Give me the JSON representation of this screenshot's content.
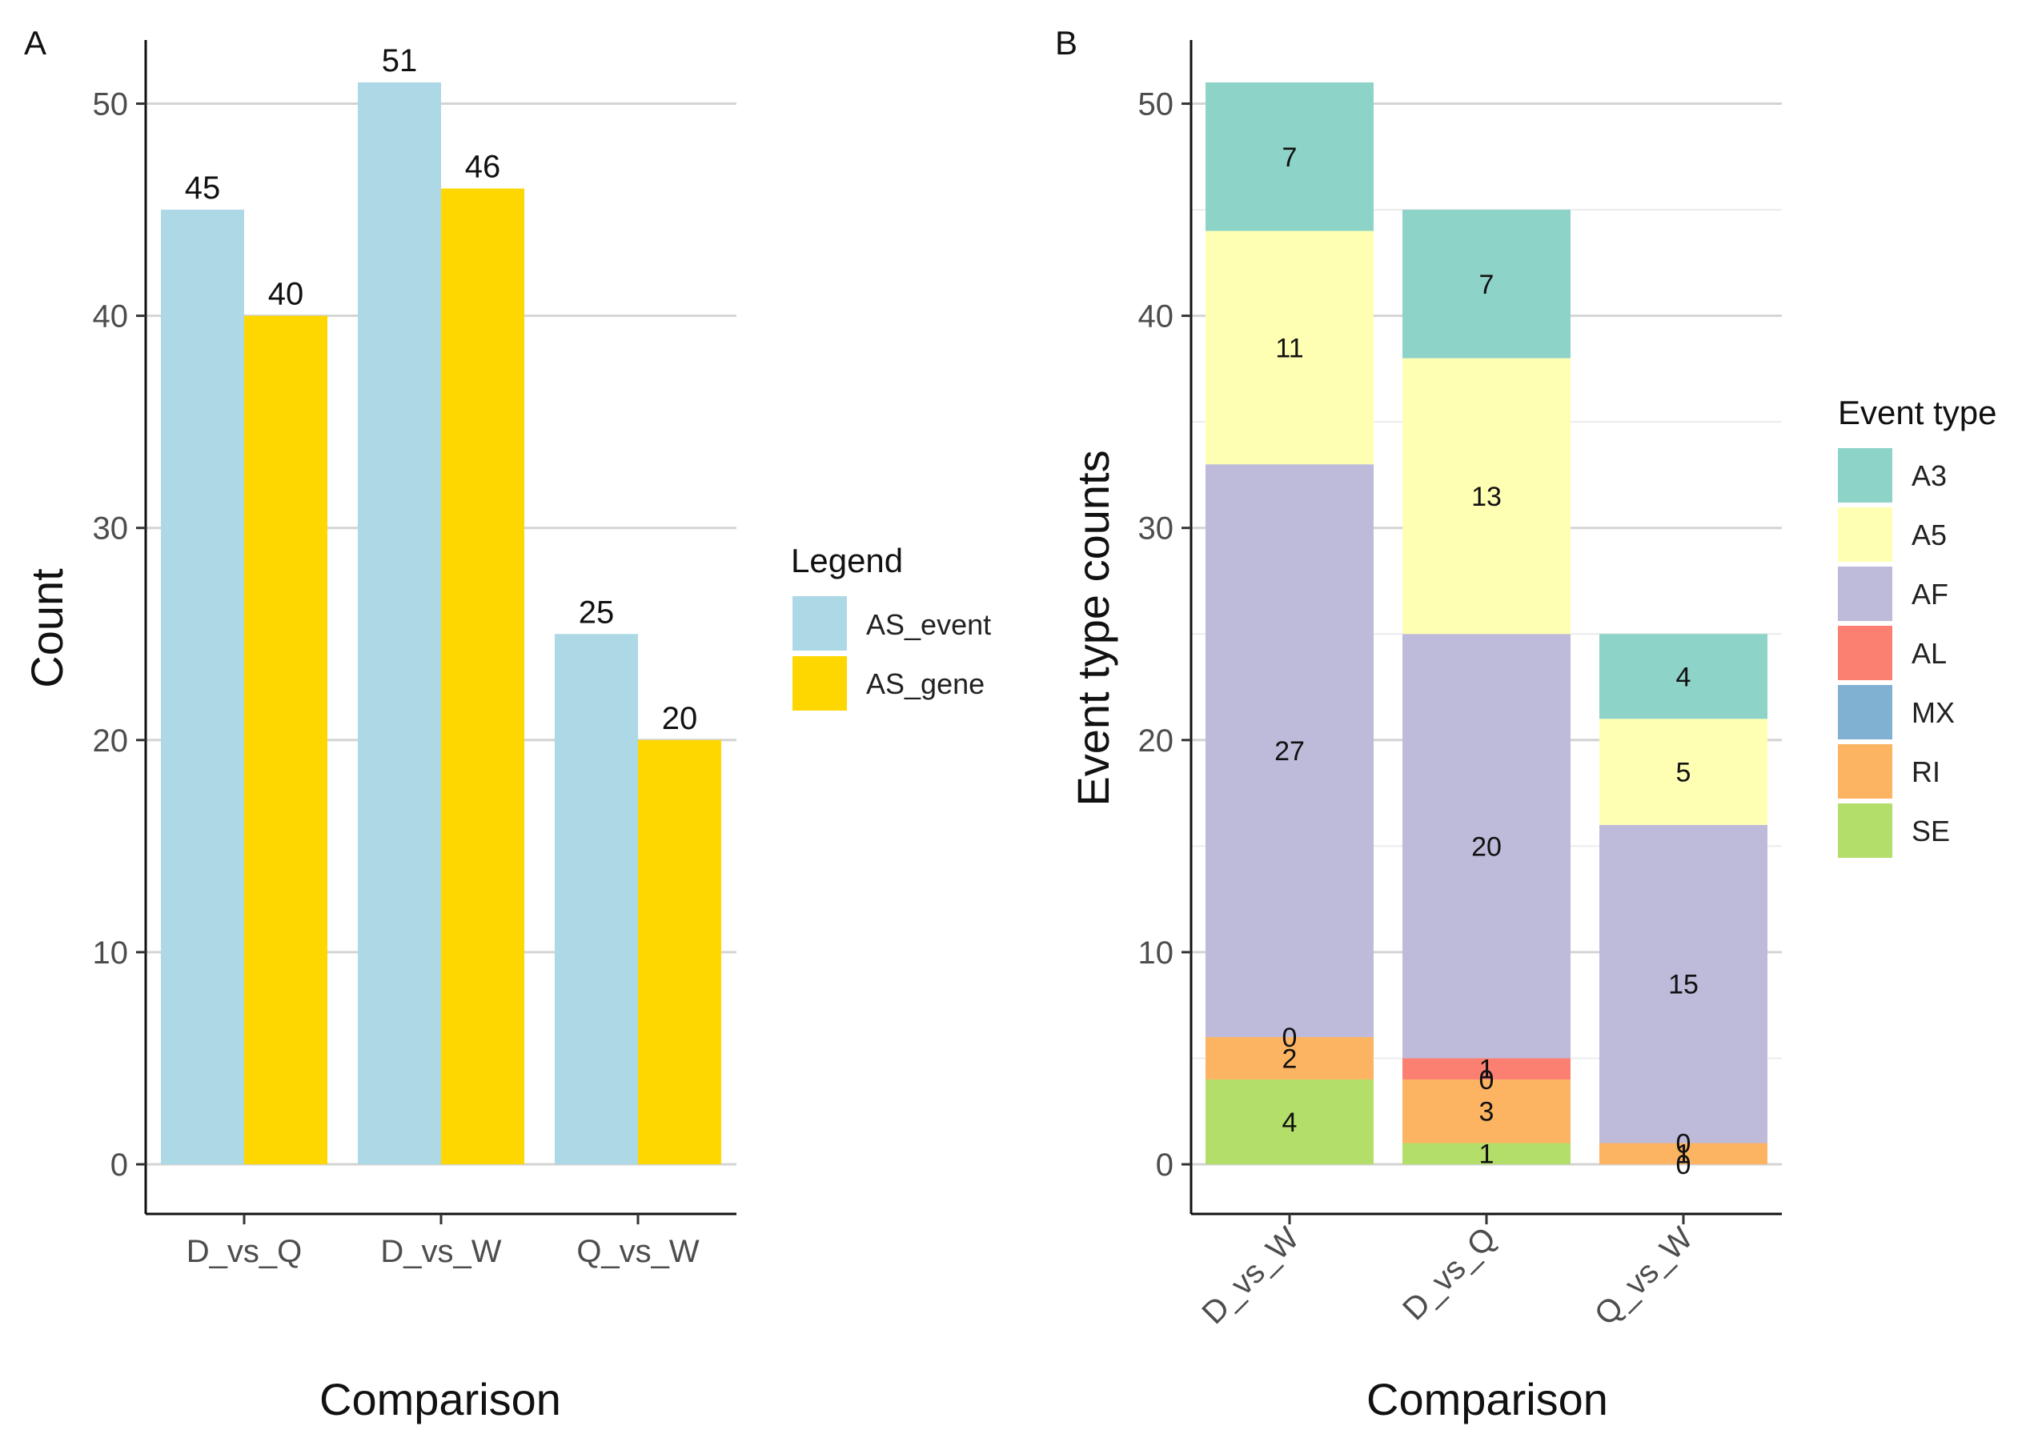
{
  "chart_data": [
    {
      "panel": "A",
      "type": "bar",
      "categories": [
        "D_vs_Q",
        "D_vs_W",
        "Q_vs_W"
      ],
      "series": [
        {
          "name": "AS_event",
          "values": [
            45,
            51,
            25
          ],
          "color": "#ADD8E6"
        },
        {
          "name": "AS_gene",
          "values": [
            40,
            46,
            20
          ],
          "color": "#FFD700"
        }
      ],
      "data_labels": [
        [
          "45",
          "40"
        ],
        [
          "51",
          "46"
        ],
        [
          "25",
          "20"
        ]
      ],
      "title": "",
      "xlabel": "Comparison",
      "ylabel": "Count",
      "ylim": [
        0,
        53
      ],
      "yticks": [
        0,
        10,
        20,
        30,
        40,
        50
      ],
      "grid": true,
      "legend": {
        "title": "Legend",
        "position": "right"
      }
    },
    {
      "panel": "B",
      "type": "bar",
      "stacked": true,
      "categories": [
        "D_vs_W",
        "D_vs_Q",
        "Q_vs_W"
      ],
      "series": [
        {
          "name": "SE",
          "values": [
            4,
            1,
            0
          ],
          "color": "#B3DE69"
        },
        {
          "name": "RI",
          "values": [
            2,
            3,
            1
          ],
          "color": "#FDB462"
        },
        {
          "name": "MX",
          "values": [
            0,
            0,
            0
          ],
          "color": "#80B1D3"
        },
        {
          "name": "AL",
          "values": [
            0,
            1,
            0
          ],
          "color": "#FB8072"
        },
        {
          "name": "AF",
          "values": [
            27,
            20,
            15
          ],
          "color": "#BEBADA"
        },
        {
          "name": "A5",
          "values": [
            11,
            13,
            5
          ],
          "color": "#FFFFB3"
        },
        {
          "name": "A3",
          "values": [
            7,
            7,
            4
          ],
          "color": "#8DD3C7"
        }
      ],
      "segment_labels": [
        [
          {
            "series": "SE",
            "text": "4"
          },
          {
            "series": "RI",
            "text": "2"
          },
          {
            "series": "MX",
            "text": "0"
          },
          {
            "series": "AF",
            "text": "27"
          },
          {
            "series": "A5",
            "text": "11"
          },
          {
            "series": "A3",
            "text": "7"
          }
        ],
        [
          {
            "series": "SE",
            "text": "1"
          },
          {
            "series": "RI",
            "text": "3"
          },
          {
            "series": "MX",
            "text": "0"
          },
          {
            "series": "AL",
            "text": "1"
          },
          {
            "series": "AF",
            "text": "20"
          },
          {
            "series": "A5",
            "text": "13"
          },
          {
            "series": "A3",
            "text": "7"
          }
        ],
        [
          {
            "series": "SE",
            "text": "0"
          },
          {
            "series": "RI",
            "text": "1"
          },
          {
            "series": "MX",
            "text": "0"
          },
          {
            "series": "AF",
            "text": "15"
          },
          {
            "series": "A5",
            "text": "5"
          },
          {
            "series": "A3",
            "text": "4"
          }
        ]
      ],
      "title": "",
      "xlabel": "Comparison",
      "ylabel": "Event type counts",
      "ylim": [
        0,
        53
      ],
      "yticks": [
        0,
        10,
        20,
        30,
        40,
        50
      ],
      "grid": true,
      "legend": {
        "title": "Event type",
        "position": "right",
        "order": [
          "A3",
          "A5",
          "AF",
          "AL",
          "MX",
          "RI",
          "SE"
        ]
      }
    }
  ]
}
